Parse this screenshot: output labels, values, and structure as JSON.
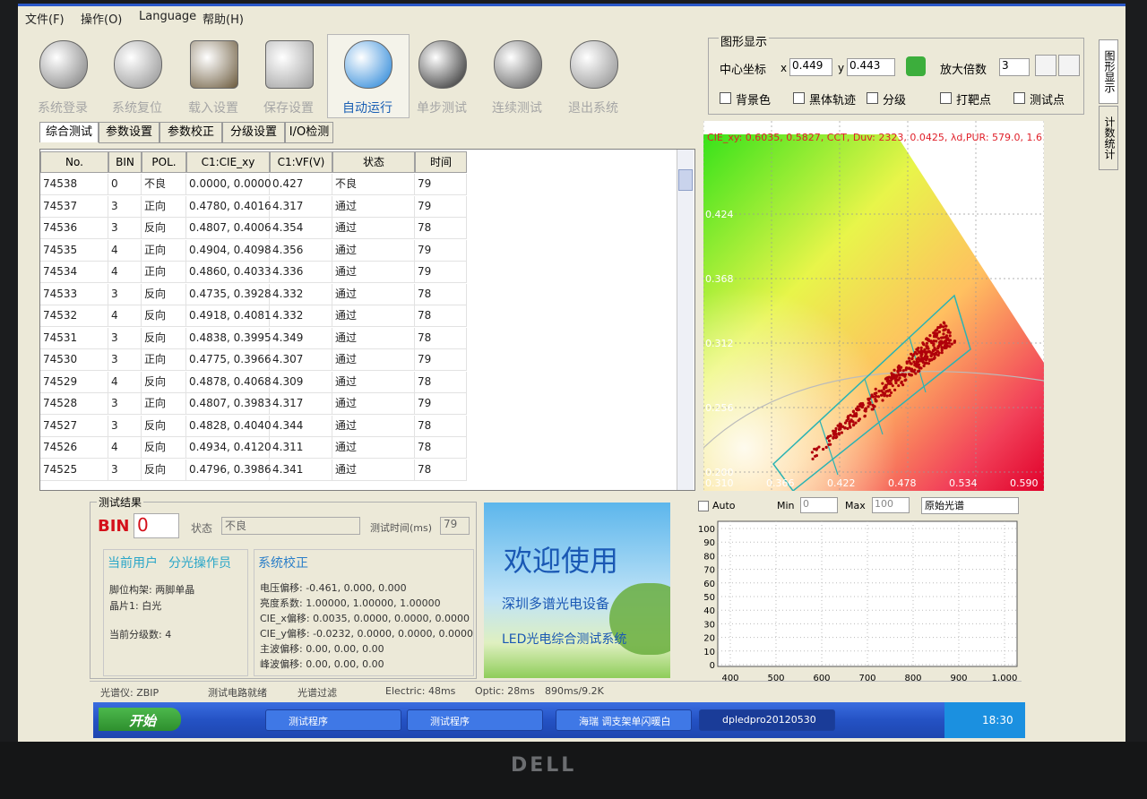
{
  "menu": [
    "文件(F)",
    "操作(O)",
    "Language",
    "帮助(H)"
  ],
  "toolbar": [
    "系统登录",
    "系统复位",
    "载入设置",
    "保存设置",
    "自动运行",
    "单步测试",
    "连续测试",
    "退出系统"
  ],
  "tabs": [
    "综合测试",
    "参数设置",
    "参数校正",
    "分级设置",
    "I/O检测"
  ],
  "table": {
    "columns": [
      "No.",
      "BIN",
      "POL.",
      "C1:CIE_xy",
      "C1:VF(V)",
      "状态",
      "时间"
    ],
    "rows": [
      [
        "74538",
        "0",
        "不良",
        "0.0000, 0.0000",
        "0.427",
        "不良",
        "79"
      ],
      [
        "74537",
        "3",
        "正向",
        "0.4780, 0.4016",
        "4.317",
        "通过",
        "79"
      ],
      [
        "74536",
        "3",
        "反向",
        "0.4807, 0.4006",
        "4.354",
        "通过",
        "78"
      ],
      [
        "74535",
        "4",
        "正向",
        "0.4904, 0.4098",
        "4.356",
        "通过",
        "79"
      ],
      [
        "74534",
        "4",
        "正向",
        "0.4860, 0.4033",
        "4.336",
        "通过",
        "79"
      ],
      [
        "74533",
        "3",
        "反向",
        "0.4735, 0.3928",
        "4.332",
        "通过",
        "78"
      ],
      [
        "74532",
        "4",
        "反向",
        "0.4918, 0.4081",
        "4.332",
        "通过",
        "78"
      ],
      [
        "74531",
        "3",
        "反向",
        "0.4838, 0.3995",
        "4.349",
        "通过",
        "78"
      ],
      [
        "74530",
        "3",
        "正向",
        "0.4775, 0.3966",
        "4.307",
        "通过",
        "79"
      ],
      [
        "74529",
        "4",
        "反向",
        "0.4878, 0.4068",
        "4.309",
        "通过",
        "78"
      ],
      [
        "74528",
        "3",
        "正向",
        "0.4807, 0.3983",
        "4.317",
        "通过",
        "79"
      ],
      [
        "74527",
        "3",
        "反向",
        "0.4828, 0.4040",
        "4.344",
        "通过",
        "78"
      ],
      [
        "74526",
        "4",
        "反向",
        "0.4934, 0.4120",
        "4.311",
        "通过",
        "78"
      ],
      [
        "74525",
        "3",
        "反向",
        "0.4796, 0.3986",
        "4.341",
        "通过",
        "78"
      ]
    ]
  },
  "graph_panel": {
    "title": "图形显示",
    "center_label": "中心坐标",
    "x_label": "x",
    "x_value": "0.449",
    "y_label": "y",
    "y_value": "0.443",
    "zoom_label": "放大倍数",
    "zoom_value": "3",
    "checkboxes": [
      "背景色",
      "黑体轨迹",
      "分级",
      "打靶点",
      "测试点"
    ]
  },
  "side_tabs": [
    "图形显示",
    "计数统计"
  ],
  "cie_chart": {
    "caption": "CIE_xy: 0.6035, 0.5827, CCT, Duv: 2323, 0.0425, λd,PUR: 579.0, 1.6",
    "xticks": [
      "0.310",
      "0.366",
      "0.422",
      "0.478",
      "0.534",
      "0.590"
    ],
    "yticks": [
      "0.424",
      "0.368",
      "0.312",
      "0.256",
      "0.200"
    ]
  },
  "spectrum": {
    "auto_label": "Auto",
    "min_label": "Min",
    "min_value": "0",
    "max_label": "Max",
    "max_value": "100",
    "mode": "原始光谱",
    "xticks": [
      400,
      500,
      600,
      700,
      800,
      900,
      {
        "value": 1000,
        "label": "1,000"
      }
    ],
    "yticks": [
      0,
      10,
      20,
      30,
      40,
      50,
      60,
      70,
      80,
      90,
      100
    ]
  },
  "result": {
    "title": "测试结果",
    "bin_label": "BIN",
    "bin_value": "0",
    "status_label": "状态",
    "status_value": "不良",
    "time_label": "测试时间(ms)",
    "time_value": "79"
  },
  "user": {
    "title": "当前用户",
    "name": "分光操作员",
    "lines": [
      "脚位构架: 两脚单晶",
      "晶片1: 白光",
      "当前分级数: 4"
    ]
  },
  "calibration": {
    "title": "系统校正",
    "lines": [
      "电压偏移: -0.461, 0.000, 0.000",
      "亮度系数: 1.00000, 1.00000, 1.00000",
      "CIE_x偏移: 0.0035, 0.0000, 0.0000, 0.0000",
      "CIE_y偏移: -0.0232, 0.0000, 0.0000, 0.0000",
      "主波偏移: 0.00, 0.00, 0.00",
      "峰波偏移: 0.00, 0.00, 0.00"
    ]
  },
  "banner": {
    "title": "欢迎使用",
    "company": "深圳多谱光电设备",
    "system": "LED光电综合测试系统"
  },
  "status_bar": [
    "光谱仪: ZBIP",
    "测试电路就绪",
    "光谱过滤",
    "Electric: 48ms",
    "Optic: 28ms",
    "890ms/9.2K"
  ],
  "taskbar": {
    "start": "开始",
    "items": [
      "测试程序",
      "测试程序",
      "海瑞 调支架单闪暖白",
      "dpledpro20120530"
    ],
    "clock": "18:30"
  },
  "monitor_brand": "DELL"
}
